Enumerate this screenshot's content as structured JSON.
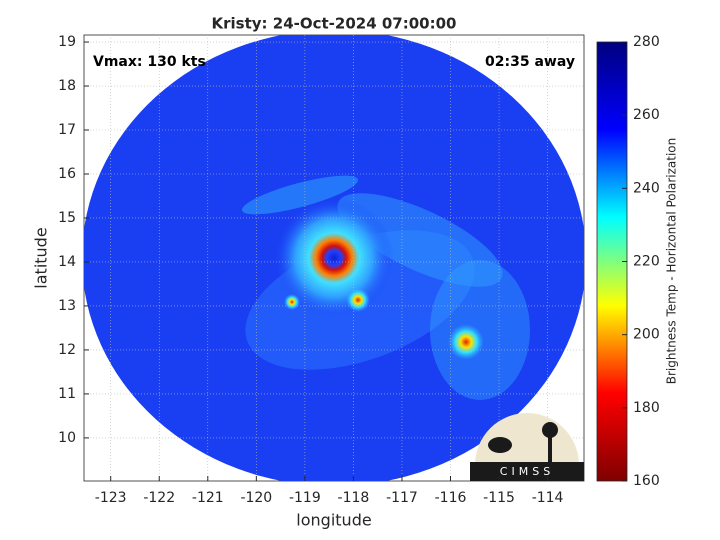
{
  "chart_data": {
    "type": "swath-image",
    "title": "Kristy: 24-Oct-2024 07:00:00",
    "annotations": {
      "left": "Vmax: 130 kts",
      "right": "02:35 away"
    },
    "xlabel": "longitude",
    "ylabel": "latitude",
    "xlim": [
      -123.55,
      -113.25
    ],
    "ylim": [
      9.02,
      19.16
    ],
    "xticks": [
      -123,
      -122,
      -121,
      -120,
      -119,
      -118,
      -117,
      -116,
      -115,
      -114
    ],
    "yticks": [
      10,
      11,
      12,
      13,
      14,
      15,
      16,
      17,
      18,
      19
    ],
    "grid": true,
    "colorbar": {
      "label": "Brightness Temp - Horizontal Polarization",
      "clim": [
        160,
        280
      ],
      "ticks": [
        160,
        180,
        200,
        220,
        240,
        260,
        280
      ],
      "colors": [
        "#00007f",
        "#0000ff",
        "#00ffff",
        "#ffff00",
        "#ff0000",
        "#7f0000"
      ]
    },
    "logo_text": "CIMSS"
  }
}
